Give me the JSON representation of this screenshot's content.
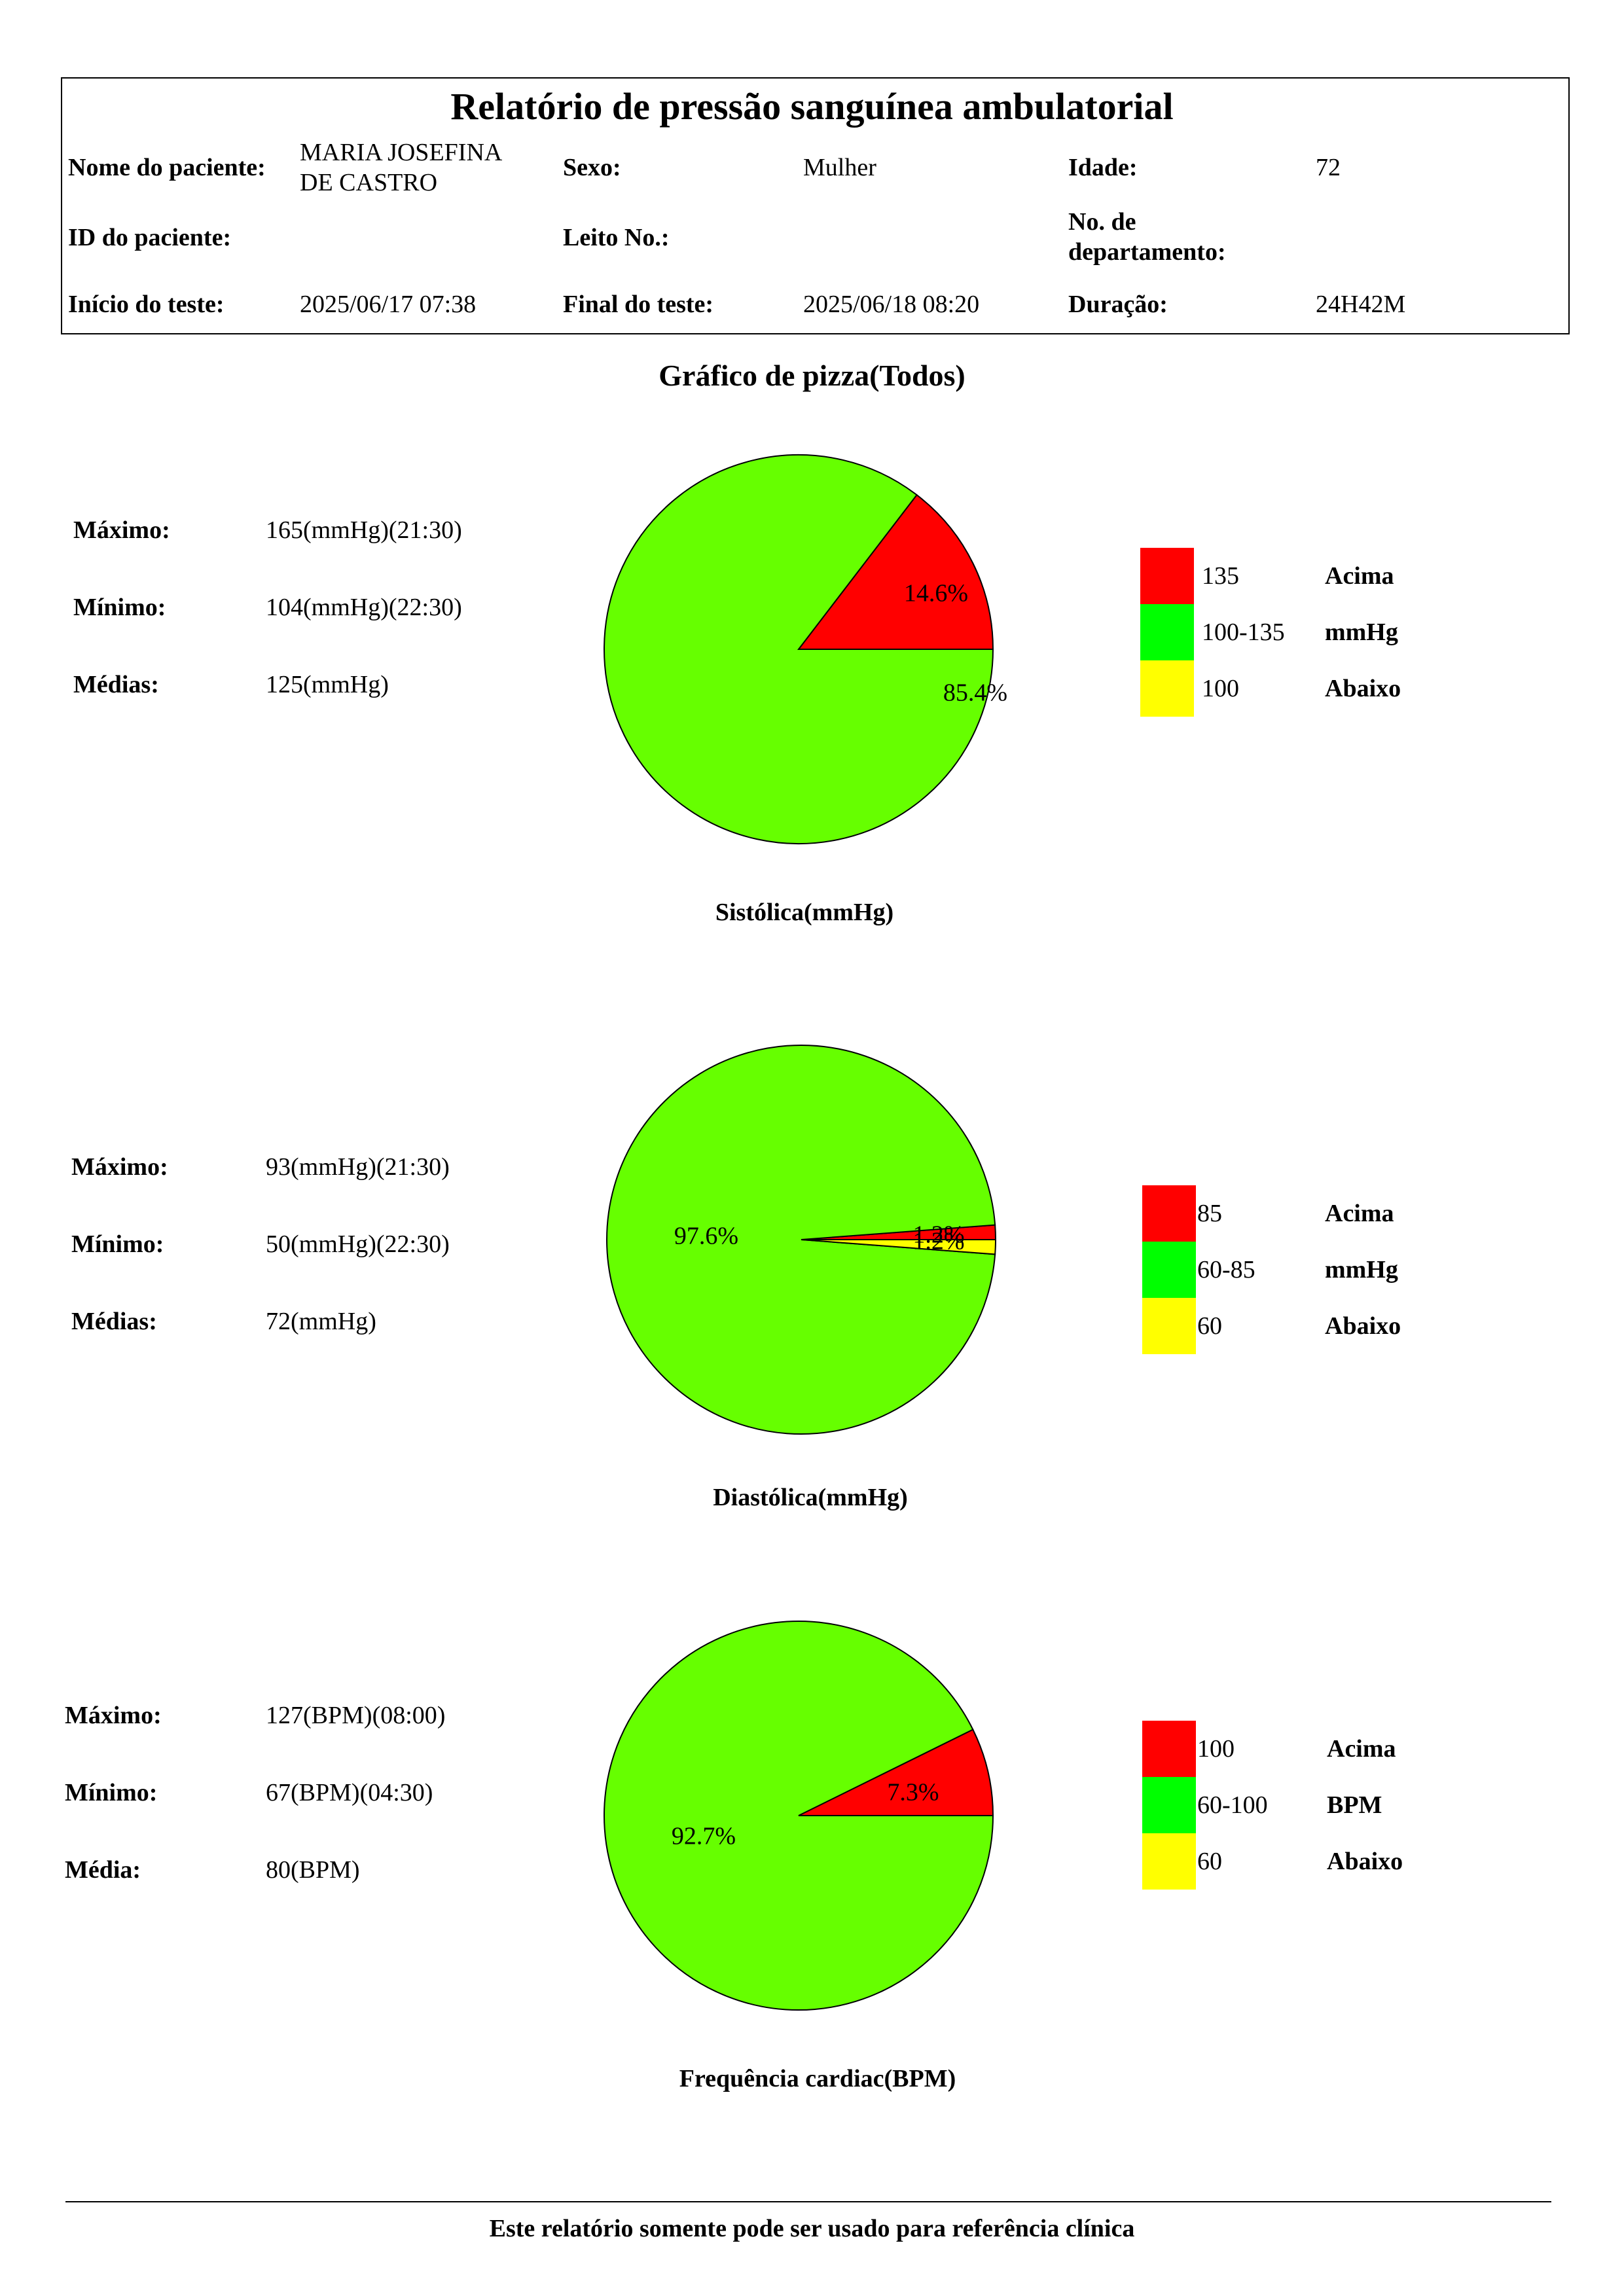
{
  "header": {
    "title": "Relatório de pressão sanguínea ambulatorial",
    "patient_name_label": "Nome do paciente:",
    "patient_name_line1": "MARIA JOSEFINA",
    "patient_name_line2": "DE CASTRO",
    "sex_label": "Sexo:",
    "sex_value": "Mulher",
    "age_label": "Idade:",
    "age_value": "72",
    "patient_id_label": "ID do paciente:",
    "patient_id_value": "",
    "bed_label": "Leito No.:",
    "bed_value": "",
    "department_label_line1": "No. de",
    "department_label_line2": "departamento:",
    "department_value": "",
    "start_label": "Início do teste:",
    "start_value": "2025/06/17 07:38",
    "end_label": "Final do teste:",
    "end_value": "2025/06/18 08:20",
    "duration_label": "Duração:",
    "duration_value": "24H42M"
  },
  "section_title": "Gráfico de pizza(Todos)",
  "colors": {
    "above": "#ff0000",
    "normal": "#66ff00",
    "normal_legend": "#00ff00",
    "below": "#ffff00",
    "outline": "#000000"
  },
  "charts": {
    "systolic": {
      "caption": "Sistólica(mmHg)",
      "stats": {
        "max_label": "Máximo:",
        "max_value": "165(mmHg)(21:30)",
        "min_label": "Mínimo:",
        "min_value": "104(mmHg)(22:30)",
        "avg_label": "Médias:",
        "avg_value": "125(mmHg)"
      },
      "legend": {
        "above_range": "135",
        "above_note": "Acima",
        "normal_range": "100-135",
        "unit": "mmHg",
        "below_range": "100",
        "below_note": "Abaixo"
      }
    },
    "diastolic": {
      "caption": "Diastólica(mmHg)",
      "stats": {
        "max_label": "Máximo:",
        "max_value": "93(mmHg)(21:30)",
        "min_label": "Mínimo:",
        "min_value": "50(mmHg)(22:30)",
        "avg_label": "Médias:",
        "avg_value": "72(mmHg)"
      },
      "legend": {
        "above_range": "85",
        "above_note": "Acima",
        "normal_range": "60-85",
        "unit": "mmHg",
        "below_range": "60",
        "below_note": "Abaixo"
      }
    },
    "heart_rate": {
      "caption": "Frequência cardiac(BPM)",
      "stats": {
        "max_label": "Máximo:",
        "max_value": "127(BPM)(08:00)",
        "min_label": "Mínimo:",
        "min_value": "67(BPM)(04:30)",
        "avg_label": "Média:",
        "avg_value": "80(BPM)"
      },
      "legend": {
        "above_range": "100",
        "above_note": "Acima",
        "normal_range": "60-100",
        "unit": "BPM",
        "below_range": "60",
        "below_note": "Abaixo"
      }
    }
  },
  "chart_data": [
    {
      "type": "pie",
      "title": "Sistólica(mmHg)",
      "slices": [
        {
          "name": "Acima",
          "value": 14.6,
          "label": "14.6%",
          "color": "#ff0000"
        },
        {
          "name": "mmHg",
          "value": 85.4,
          "label": "85.4%",
          "color": "#66ff00"
        }
      ]
    },
    {
      "type": "pie",
      "title": "Diastólica(mmHg)",
      "slices": [
        {
          "name": "Acima",
          "value": 1.2,
          "label": "1.2%",
          "color": "#ff0000"
        },
        {
          "name": "mmHg",
          "value": 97.6,
          "label": "97.6%",
          "color": "#66ff00"
        },
        {
          "name": "Abaixo",
          "value": 1.2,
          "label": "1.2%",
          "color": "#ffff00"
        }
      ]
    },
    {
      "type": "pie",
      "title": "Frequência cardiac(BPM)",
      "slices": [
        {
          "name": "Acima",
          "value": 7.3,
          "label": "7.3%",
          "color": "#ff0000"
        },
        {
          "name": "BPM",
          "value": 92.7,
          "label": "92.7%",
          "color": "#66ff00"
        }
      ]
    }
  ],
  "footer": "Este relatório somente pode ser usado para referência clínica"
}
